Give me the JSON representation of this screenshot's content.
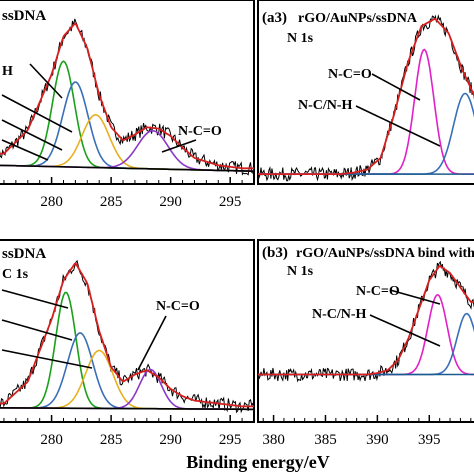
{
  "xlabel": "Binding energy/eV",
  "chart_data": [
    {
      "type": "line",
      "title": "ssDNA",
      "tag": "",
      "subtitle": "",
      "xlabel": "Binding energy/eV",
      "ylabel": "",
      "x_ticks": [
        280,
        285,
        290,
        295
      ],
      "xlim": [
        275.5,
        297
      ],
      "ylim": [
        0,
        1.2
      ],
      "annotations": [
        "H",
        "N-C=O"
      ],
      "series": [
        {
          "color": "#d62020",
          "x": [
            276,
            278,
            280,
            281,
            282,
            283,
            284,
            285,
            286,
            287,
            288,
            289,
            290,
            291,
            292,
            294,
            296
          ],
          "y": [
            0.18,
            0.34,
            0.72,
            0.98,
            1.07,
            0.9,
            0.58,
            0.36,
            0.27,
            0.31,
            0.36,
            0.35,
            0.3,
            0.22,
            0.15,
            0.1,
            0.08
          ]
        },
        {
          "color": "#1aa01a",
          "peak": 281.0,
          "height": 0.72,
          "width": 1.3
        },
        {
          "color": "#3a6fb8",
          "peak": 282.0,
          "height": 0.58,
          "width": 1.5
        },
        {
          "color": "#e8b020",
          "peak": 283.7,
          "height": 0.36,
          "width": 1.6
        },
        {
          "color": "#8a38c8",
          "peak": 288.5,
          "height": 0.26,
          "width": 1.8
        },
        {
          "color": "#000000",
          "type": "baseline",
          "y0": 0.1,
          "y1": 0.06
        }
      ]
    },
    {
      "type": "line",
      "title": "rGO/AuNPs/ssDNA",
      "tag": "(a3)",
      "subtitle": "N 1s",
      "xlim": [
        383,
        399
      ],
      "ylim": [
        0,
        1.2
      ],
      "annotations": [
        "N-C=O",
        "N-C/N-H"
      ],
      "series": [
        {
          "color": "#d62020",
          "x": [
            383,
            385,
            387,
            389,
            390,
            391,
            392,
            393,
            394,
            395,
            396,
            397,
            398,
            399
          ],
          "y": [
            0.04,
            0.04,
            0.04,
            0.04,
            0.05,
            0.07,
            0.15,
            0.45,
            0.8,
            1.05,
            1.1,
            1.0,
            0.75,
            0.55
          ]
        },
        {
          "color": "#e020c8",
          "peak": 395.2,
          "height": 0.85,
          "width": 1.0
        },
        {
          "color": "#3a6fb8",
          "peak": 398.2,
          "height": 0.55,
          "width": 1.2
        },
        {
          "color": "#1a5c90",
          "type": "baseline",
          "y0": 0.04,
          "y1": 0.04
        }
      ]
    },
    {
      "type": "line",
      "title": "ssDNA",
      "tag": "",
      "subtitle": "C 1s",
      "xlabel": "Binding energy/eV",
      "x_ticks": [
        280,
        285,
        290,
        295
      ],
      "xlim": [
        275.5,
        297
      ],
      "ylim": [
        0,
        1.2
      ],
      "annotations": [
        "N-C=O"
      ],
      "series": [
        {
          "color": "#d62020",
          "x": [
            276,
            278,
            280,
            281,
            282,
            283,
            284,
            285,
            286,
            287,
            288,
            289,
            290,
            291,
            292,
            294,
            296
          ],
          "y": [
            0.1,
            0.25,
            0.68,
            0.95,
            1.07,
            0.93,
            0.6,
            0.35,
            0.25,
            0.3,
            0.33,
            0.28,
            0.2,
            0.15,
            0.12,
            0.1,
            0.08
          ]
        },
        {
          "color": "#1aa01a",
          "peak": 281.2,
          "height": 0.8,
          "width": 1.2
        },
        {
          "color": "#3a6fb8",
          "peak": 282.4,
          "height": 0.52,
          "width": 1.5
        },
        {
          "color": "#e8b020",
          "peak": 284.0,
          "height": 0.4,
          "width": 1.6
        },
        {
          "color": "#8a38c8",
          "peak": 288.3,
          "height": 0.27,
          "width": 1.3
        },
        {
          "color": "#000000",
          "type": "baseline",
          "y0": 0.07,
          "y1": 0.06
        }
      ]
    },
    {
      "type": "line",
      "title": "rGO/AuNPs/ssDNA bind with",
      "tag": "(b3)",
      "subtitle": "N 1s",
      "xlabel": "Binding energy/eV",
      "x_ticks": [
        380,
        385,
        390,
        395
      ],
      "xlim": [
        378.5,
        399.5
      ],
      "ylim": [
        0,
        1.2
      ],
      "annotations": [
        "N-C=O",
        "N-C/N-H"
      ],
      "series": [
        {
          "color": "#d62020",
          "x": [
            379,
            381,
            383,
            385,
            387,
            389,
            390,
            391,
            392,
            393,
            394,
            395,
            396,
            397,
            398,
            399
          ],
          "y": [
            0.3,
            0.3,
            0.3,
            0.3,
            0.3,
            0.3,
            0.31,
            0.33,
            0.4,
            0.55,
            0.75,
            0.95,
            1.05,
            1.0,
            0.9,
            0.8
          ]
        },
        {
          "color": "#e020c8",
          "peak": 395.8,
          "height": 0.55,
          "width": 1.3
        },
        {
          "color": "#3a6fb8",
          "peak": 398.6,
          "height": 0.42,
          "width": 1.3
        },
        {
          "color": "#1a5c90",
          "type": "baseline",
          "y0": 0.3,
          "y1": 0.3
        }
      ]
    }
  ]
}
